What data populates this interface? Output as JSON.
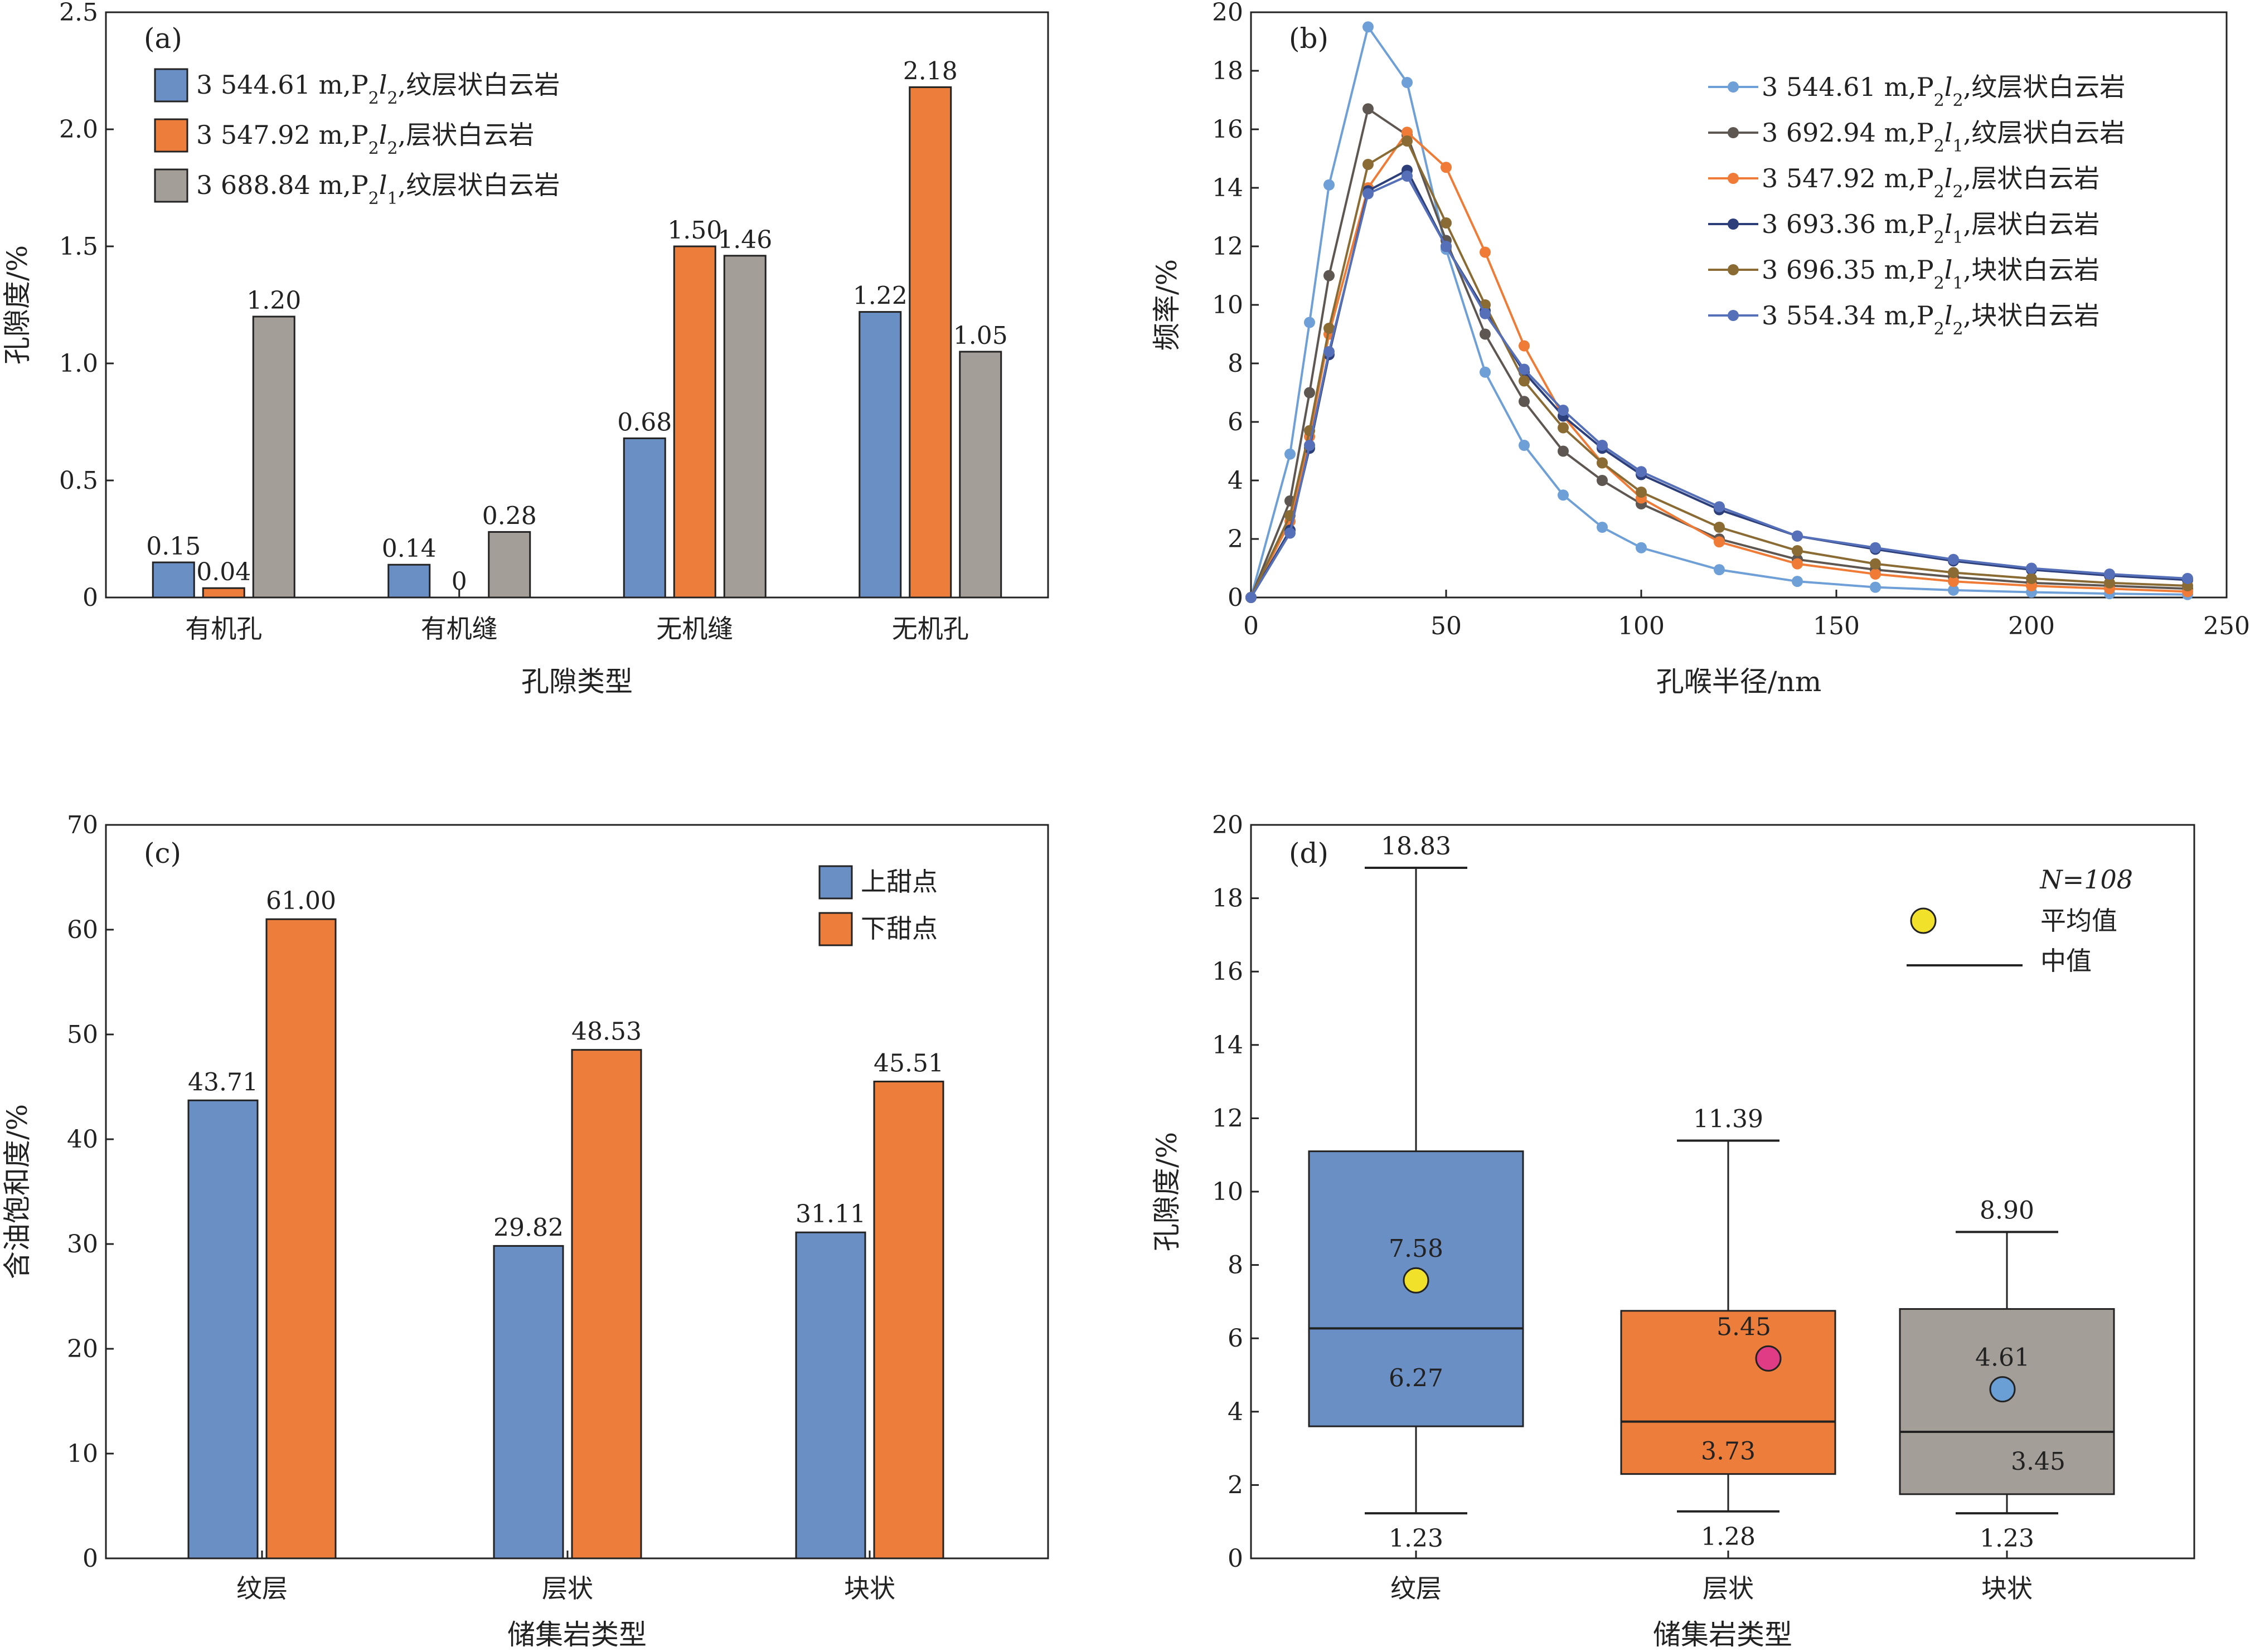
{
  "chart_data": [
    {
      "id": "a",
      "type": "bar",
      "panel_label": "(a)",
      "xlabel": "孔隙类型",
      "ylabel": "孔隙度/%",
      "ylim": [
        0,
        2.5
      ],
      "yticks": [
        "0",
        "0.5",
        "1.0",
        "1.5",
        "2.0",
        "2.5"
      ],
      "categories": [
        "有机孔",
        "有机缝",
        "无机缝",
        "无机孔"
      ],
      "series": [
        {
          "name": "3 544.61 m,P2l2,纹层状白云岩",
          "name_parts": [
            "3 544.61 m,P",
            "2",
            "l",
            "2",
            ",纹层状白云岩"
          ],
          "color": "#6a8fc4",
          "values": [
            0.15,
            0.14,
            0.68,
            1.22
          ],
          "labels": [
            "0.15",
            "0.14",
            "0.68",
            "1.22"
          ]
        },
        {
          "name": "3 547.92 m,P2l2,层状白云岩",
          "name_parts": [
            "3 547.92 m,P",
            "2",
            "l",
            "2",
            ",层状白云岩"
          ],
          "color": "#ed7d3a",
          "values": [
            0.04,
            0,
            1.5,
            2.18
          ],
          "labels": [
            "0.04",
            "0",
            "1.50",
            "2.18"
          ]
        },
        {
          "name": "3 688.84 m,P2l1,纹层状白云岩",
          "name_parts": [
            "3 688.84 m,P",
            "2",
            "l",
            "1",
            ",纹层状白云岩"
          ],
          "color": "#a49e99",
          "values": [
            1.2,
            0.28,
            1.46,
            1.05
          ],
          "labels": [
            "1.20",
            "0.28",
            "1.46",
            "1.05"
          ]
        }
      ],
      "legend_position": "top-left"
    },
    {
      "id": "b",
      "type": "line",
      "panel_label": "(b)",
      "xlabel": "孔喉半径/nm",
      "ylabel": "频率/%",
      "xlim": [
        0,
        250
      ],
      "ylim": [
        0,
        20
      ],
      "xticks": [
        "0",
        "50",
        "100",
        "150",
        "200",
        "250"
      ],
      "yticks": [
        "0",
        "2",
        "4",
        "6",
        "8",
        "10",
        "12",
        "14",
        "16",
        "18",
        "20"
      ],
      "x": [
        0,
        10,
        15,
        20,
        30,
        40,
        50,
        60,
        70,
        80,
        90,
        100,
        120,
        140,
        160,
        180,
        200,
        220,
        240
      ],
      "series": [
        {
          "name": "3 544.61 m,P2l2,纹层状白云岩",
          "name_parts": [
            "3 544.61 m,P",
            "2",
            "l",
            "2",
            ",纹层状白云岩"
          ],
          "color": "#6e9fd6",
          "values": [
            0,
            4.9,
            9.4,
            14.1,
            19.5,
            17.6,
            11.9,
            7.7,
            5.2,
            3.5,
            2.4,
            1.7,
            0.95,
            0.55,
            0.35,
            0.25,
            0.18,
            0.13,
            0.1
          ]
        },
        {
          "name": "3 692.94 m,P2l1,纹层状白云岩",
          "name_parts": [
            "3 692.94 m,P",
            "2",
            "l",
            "1",
            ",纹层状白云岩"
          ],
          "color": "#5e5650",
          "values": [
            0,
            3.3,
            7.0,
            11.0,
            16.7,
            15.8,
            12.2,
            9.0,
            6.7,
            5.0,
            4.0,
            3.2,
            2.0,
            1.3,
            0.95,
            0.7,
            0.5,
            0.4,
            0.3
          ]
        },
        {
          "name": "3 547.92 m,P2l2,层状白云岩",
          "name_parts": [
            "3 547.92 m,P",
            "2",
            "l",
            "2",
            ",层状白云岩"
          ],
          "color": "#ef7b36",
          "values": [
            0,
            2.6,
            5.5,
            9.0,
            14.0,
            15.9,
            14.7,
            11.8,
            8.6,
            6.2,
            4.6,
            3.4,
            1.9,
            1.15,
            0.8,
            0.55,
            0.4,
            0.3,
            0.2
          ]
        },
        {
          "name": "3 693.36 m,P2l1,层状白云岩",
          "name_parts": [
            "3 693.36 m,P",
            "2",
            "l",
            "1",
            ",层状白云岩"
          ],
          "color": "#2d3f7a",
          "values": [
            0,
            2.3,
            5.1,
            8.3,
            13.9,
            14.6,
            12.0,
            9.8,
            7.7,
            6.2,
            5.1,
            4.2,
            3.0,
            2.1,
            1.65,
            1.25,
            0.95,
            0.75,
            0.6
          ]
        },
        {
          "name": "3 696.35 m,P2l1,块状白云岩",
          "name_parts": [
            "3 696.35 m,P",
            "2",
            "l",
            "1",
            ",块状白云岩"
          ],
          "color": "#8a6b34",
          "values": [
            0,
            2.8,
            5.7,
            9.2,
            14.8,
            15.6,
            12.8,
            10.0,
            7.4,
            5.8,
            4.6,
            3.6,
            2.4,
            1.6,
            1.15,
            0.85,
            0.65,
            0.5,
            0.4
          ]
        },
        {
          "name": "3 554.34 m,P2l2,块状白云岩",
          "name_parts": [
            "3 554.34 m,P",
            "2",
            "l",
            "2",
            ",块状白云岩"
          ],
          "color": "#5570b8",
          "values": [
            0,
            2.2,
            5.2,
            8.4,
            13.8,
            14.4,
            12.0,
            9.7,
            7.8,
            6.4,
            5.2,
            4.3,
            3.1,
            2.1,
            1.7,
            1.3,
            1.0,
            0.8,
            0.65
          ]
        }
      ],
      "legend_position": "top-right"
    },
    {
      "id": "c",
      "type": "bar",
      "panel_label": "(c)",
      "xlabel": "储集岩类型",
      "ylabel": "含油饱和度/%",
      "ylim": [
        0,
        70
      ],
      "yticks": [
        "0",
        "10",
        "20",
        "30",
        "40",
        "50",
        "60",
        "70"
      ],
      "categories": [
        "纹层",
        "层状",
        "块状"
      ],
      "series": [
        {
          "name": "上甜点",
          "color": "#6a8fc4",
          "values": [
            43.71,
            29.82,
            31.11
          ],
          "labels": [
            "43.71",
            "29.82",
            "31.11"
          ]
        },
        {
          "name": "下甜点",
          "color": "#ed7d3a",
          "values": [
            61.0,
            48.53,
            45.51
          ],
          "labels": [
            "61.00",
            "48.53",
            "45.51"
          ]
        }
      ],
      "legend_position": "top-right"
    },
    {
      "id": "d",
      "type": "box",
      "panel_label": "(d)",
      "xlabel": "储集岩类型",
      "ylabel": "孔隙度/%",
      "ylim": [
        0,
        20
      ],
      "yticks": [
        "0",
        "2",
        "4",
        "6",
        "8",
        "10",
        "12",
        "14",
        "16",
        "18",
        "20"
      ],
      "categories": [
        "纹层",
        "层状",
        "块状"
      ],
      "n_label": "N=108",
      "legend": {
        "mean": "平均值",
        "median": "中值"
      },
      "boxes": [
        {
          "category": "纹层",
          "min": 1.23,
          "q1": 3.6,
          "median": 6.27,
          "q3": 11.1,
          "max": 18.83,
          "mean": 7.58,
          "min_label": "1.23",
          "max_label": "18.83",
          "median_label": "6.27",
          "mean_label": "7.58",
          "color": "#6a8fc4",
          "mean_color": "#f2e12a"
        },
        {
          "category": "层状",
          "min": 1.28,
          "q1": 2.3,
          "median": 3.73,
          "q3": 6.75,
          "max": 11.39,
          "mean": 5.45,
          "min_label": "1.28",
          "max_label": "11.39",
          "median_label": "3.73",
          "mean_label": "5.45",
          "color": "#ed7d3a",
          "mean_color": "#e03c86"
        },
        {
          "category": "块状",
          "min": 1.23,
          "q1": 1.75,
          "median": 3.45,
          "q3": 6.8,
          "max": 8.9,
          "mean": 4.61,
          "min_label": "1.23",
          "max_label": "8.90",
          "median_label": "3.45",
          "mean_label": "4.61",
          "color": "#a49e99",
          "mean_color": "#6a9fd6"
        }
      ]
    }
  ]
}
